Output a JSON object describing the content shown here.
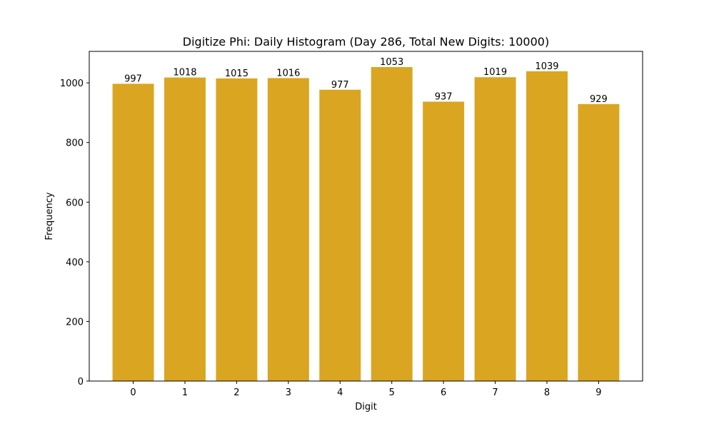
{
  "chart_data": {
    "type": "bar",
    "title": "Digitize Phi: Daily Histogram (Day 286, Total New Digits: 10000)",
    "xlabel": "Digit",
    "ylabel": "Frequency",
    "categories": [
      "0",
      "1",
      "2",
      "3",
      "4",
      "5",
      "6",
      "7",
      "8",
      "9"
    ],
    "values": [
      997,
      1018,
      1015,
      1016,
      977,
      1053,
      937,
      1019,
      1039,
      929
    ],
    "data_labels": [
      "997",
      "1018",
      "1015",
      "1016",
      "977",
      "1053",
      "937",
      "1019",
      "1039",
      "929"
    ],
    "ylim": [
      0,
      1105.65
    ],
    "yticks": [
      0,
      200,
      400,
      600,
      800,
      1000
    ],
    "ytick_labels": [
      "0",
      "200",
      "400",
      "600",
      "800",
      "1000"
    ],
    "grid": false,
    "bar_color": "#DAA520"
  }
}
